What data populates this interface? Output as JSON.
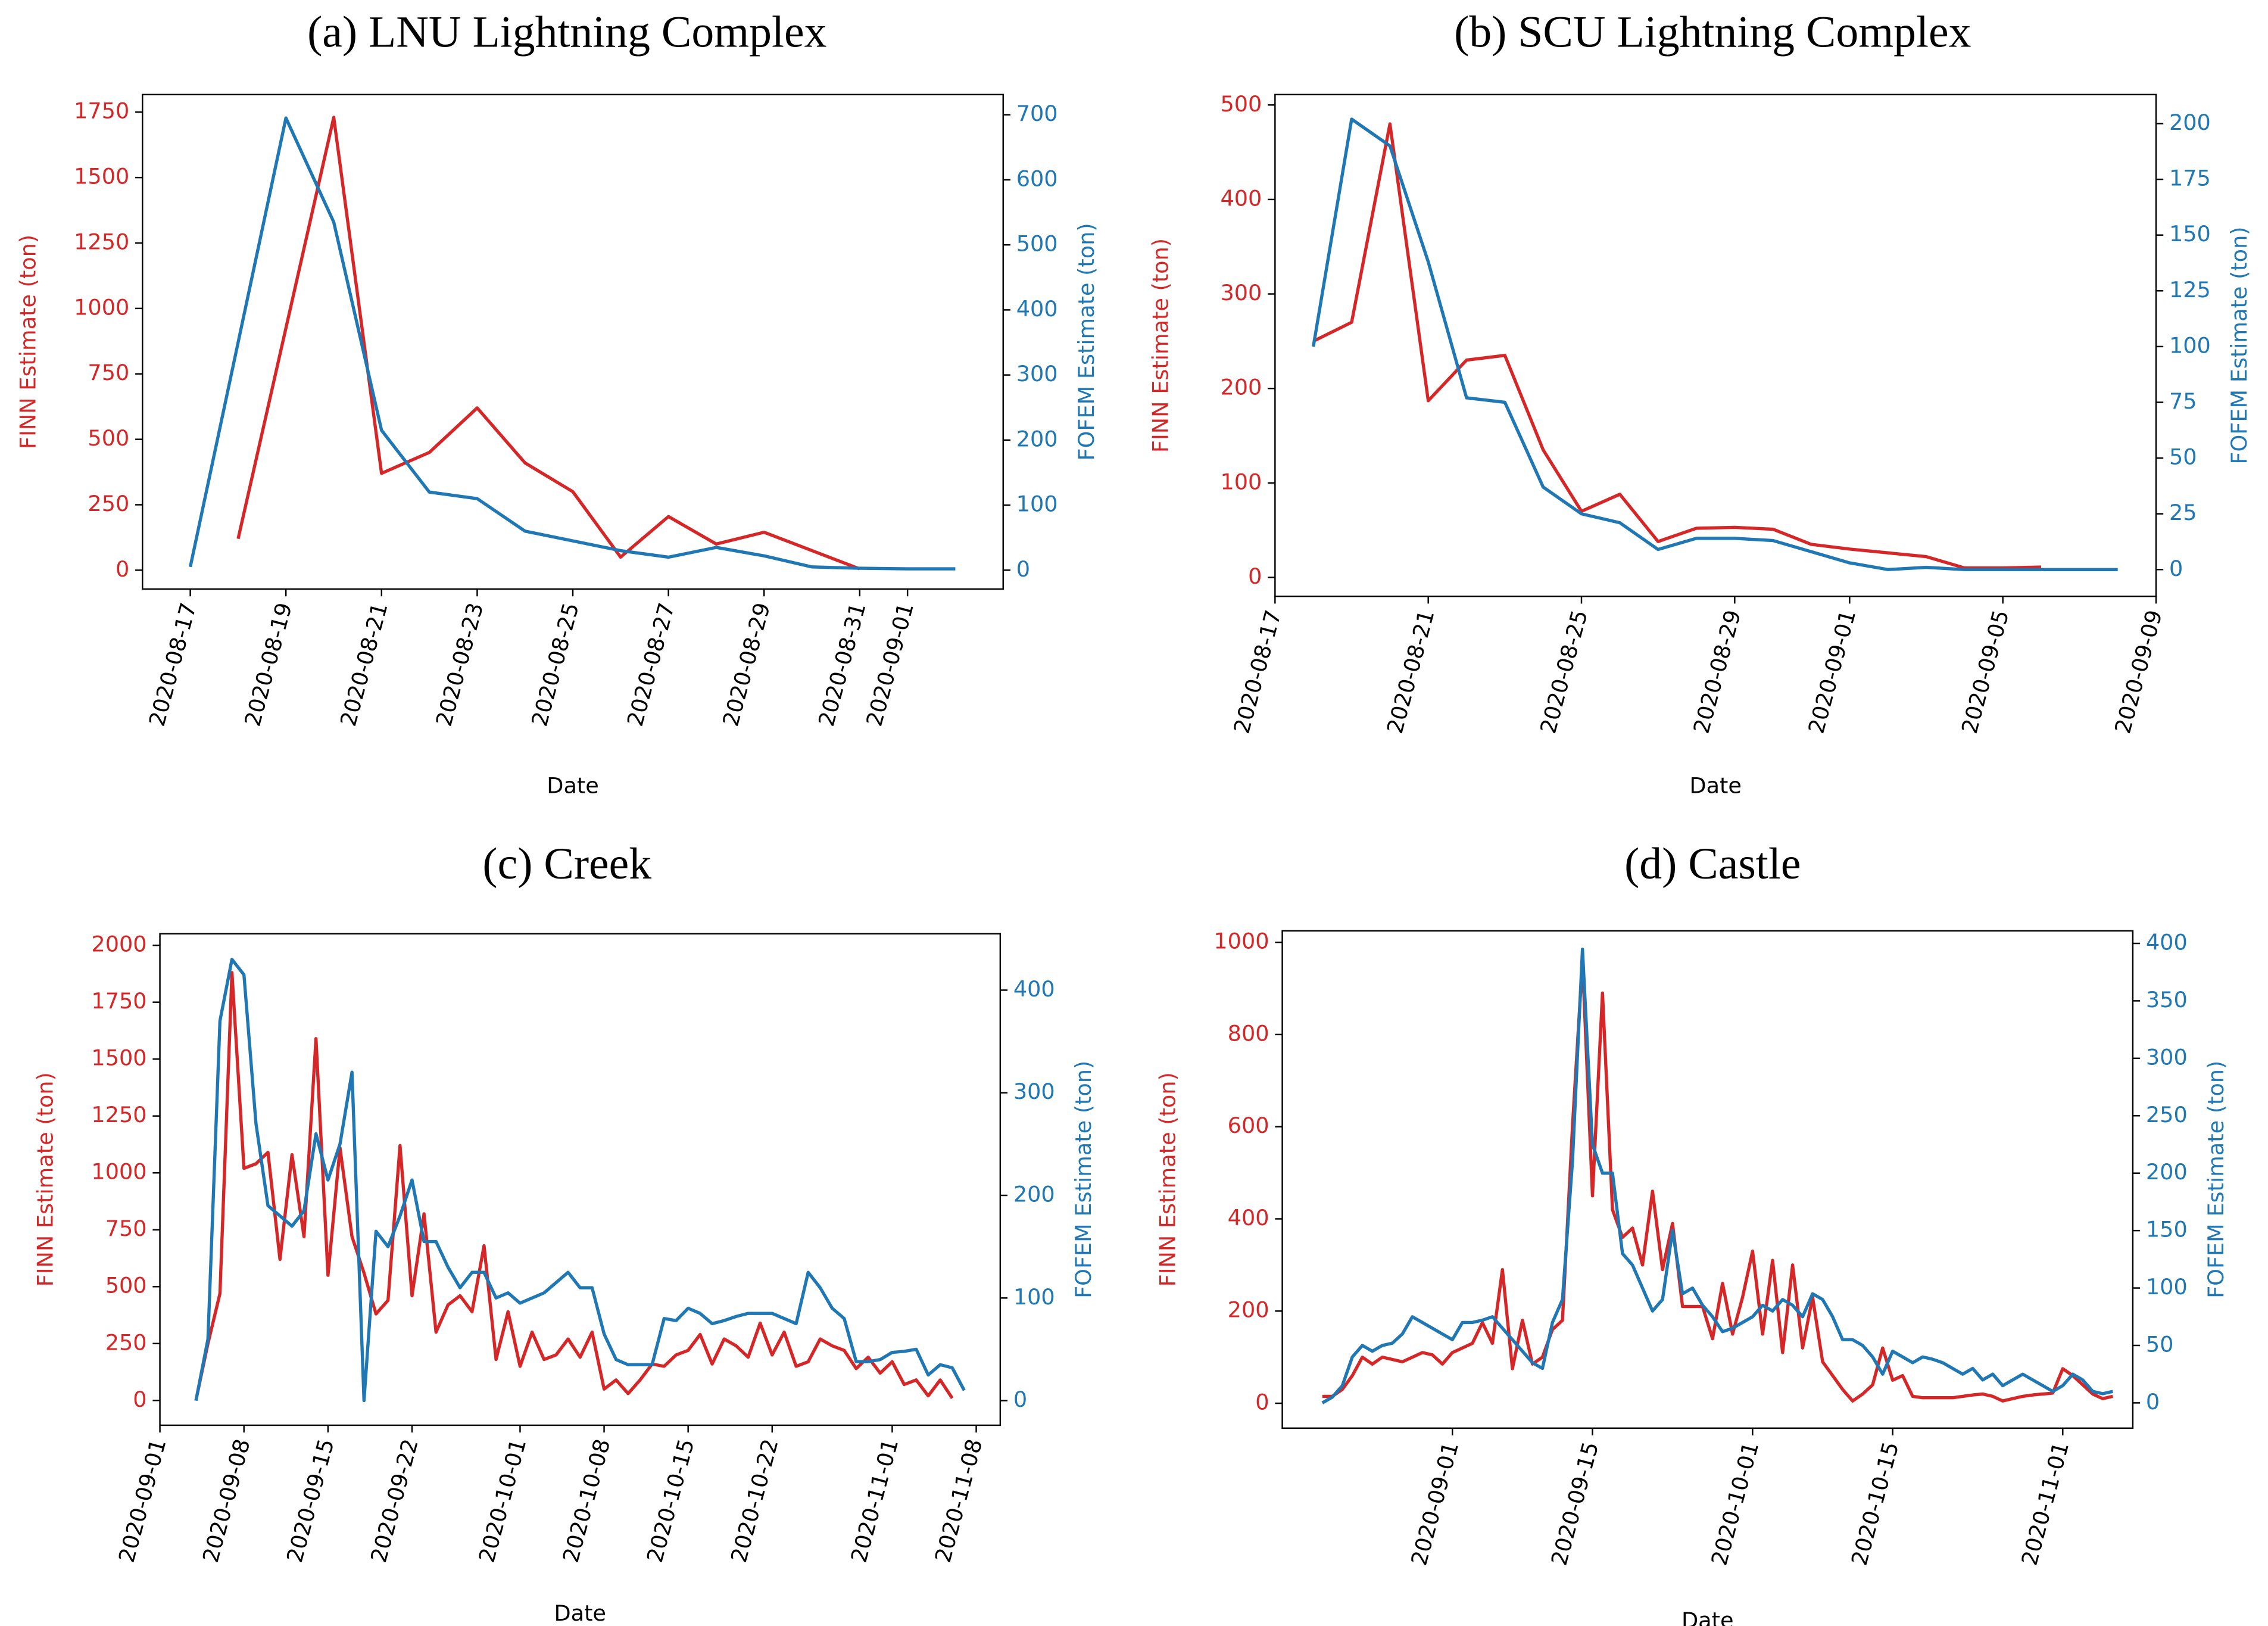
{
  "chart_data": [
    {
      "type": "line",
      "title": "(a) LNU Lightning Complex",
      "xlabel": "Date",
      "ylabel": "FINN Estimate (ton)",
      "y2label": "FOFEM Estimate (ton)",
      "x": [
        "2020-08-17",
        "2020-08-18",
        "2020-08-19",
        "2020-08-20",
        "2020-08-21",
        "2020-08-22",
        "2020-08-23",
        "2020-08-24",
        "2020-08-25",
        "2020-08-26",
        "2020-08-27",
        "2020-08-28",
        "2020-08-29",
        "2020-08-30",
        "2020-08-31",
        "2020-09-01",
        "2020-09-02"
      ],
      "series": [
        {
          "color": "#d62728",
          "axis": "y",
          "values": [
            null,
            120,
            925,
            1730,
            370,
            450,
            620,
            410,
            300,
            50,
            205,
            100,
            145,
            75,
            5,
            null,
            null
          ]
        },
        {
          "color": "#1f77b4",
          "axis": "y2",
          "values": [
            5,
            350,
            695,
            535,
            215,
            120,
            110,
            60,
            45,
            30,
            20,
            35,
            22,
            5,
            3,
            2,
            2
          ]
        }
      ],
      "xlim": [
        "2020-08-16",
        "2020-09-03"
      ],
      "xticks": [
        "2020-08-17",
        "2020-08-19",
        "2020-08-21",
        "2020-08-23",
        "2020-08-25",
        "2020-08-27",
        "2020-08-29",
        "2020-08-31",
        "2020-09-01"
      ],
      "ylim": [
        -72,
        1817
      ],
      "yticks": [
        0,
        250,
        500,
        750,
        1000,
        1250,
        1500,
        1750
      ],
      "y2lim": [
        -29,
        731
      ],
      "y2ticks": [
        0,
        100,
        200,
        300,
        400,
        500,
        600,
        700
      ]
    },
    {
      "type": "line",
      "title": "(b) SCU Lightning Complex",
      "xlabel": "Date",
      "ylabel": "FINN Estimate (ton)",
      "y2label": "FOFEM Estimate (ton)",
      "x": [
        "2020-08-18",
        "2020-08-19",
        "2020-08-20",
        "2020-08-21",
        "2020-08-22",
        "2020-08-23",
        "2020-08-24",
        "2020-08-25",
        "2020-08-26",
        "2020-08-27",
        "2020-08-28",
        "2020-08-29",
        "2020-08-30",
        "2020-08-31",
        "2020-09-01",
        "2020-09-02",
        "2020-09-03",
        "2020-09-04",
        "2020-09-05",
        "2020-09-06",
        "2020-09-07",
        "2020-09-08"
      ],
      "series": [
        {
          "color": "#d62728",
          "axis": "y",
          "values": [
            250,
            270,
            480,
            187,
            230,
            235,
            135,
            70,
            88,
            38,
            52,
            53,
            51,
            35,
            30,
            26,
            22,
            10,
            10,
            11,
            null,
            null
          ]
        },
        {
          "color": "#1f77b4",
          "axis": "y2",
          "values": [
            100,
            202,
            190,
            138,
            77,
            75,
            37,
            25,
            21,
            9,
            14,
            14,
            13,
            8,
            3,
            0,
            1,
            0,
            0,
            0,
            0,
            0
          ]
        }
      ],
      "xlim": [
        "2020-08-17",
        "2020-09-09"
      ],
      "xticks": [
        "2020-08-17",
        "2020-08-21",
        "2020-08-25",
        "2020-08-29",
        "2020-09-01",
        "2020-09-05",
        "2020-09-09"
      ],
      "ylim": [
        -20,
        511
      ],
      "yticks": [
        0,
        100,
        200,
        300,
        400,
        500
      ],
      "y2lim": [
        -12,
        213
      ],
      "y2ticks": [
        0,
        25,
        50,
        75,
        100,
        125,
        150,
        175,
        200
      ]
    },
    {
      "type": "line",
      "title": "(c) Creek",
      "xlabel": "Date",
      "ylabel": "FINN Estimate (ton)",
      "y2label": "FOFEM Estimate (ton)",
      "x": [
        "2020-09-04",
        "2020-09-05",
        "2020-09-06",
        "2020-09-07",
        "2020-09-08",
        "2020-09-09",
        "2020-09-10",
        "2020-09-11",
        "2020-09-12",
        "2020-09-13",
        "2020-09-14",
        "2020-09-15",
        "2020-09-16",
        "2020-09-17",
        "2020-09-18",
        "2020-09-19",
        "2020-09-20",
        "2020-09-21",
        "2020-09-22",
        "2020-09-23",
        "2020-09-24",
        "2020-09-25",
        "2020-09-26",
        "2020-09-27",
        "2020-09-28",
        "2020-09-29",
        "2020-09-30",
        "2020-10-01",
        "2020-10-02",
        "2020-10-03",
        "2020-10-04",
        "2020-10-05",
        "2020-10-06",
        "2020-10-07",
        "2020-10-08",
        "2020-10-09",
        "2020-10-10",
        "2020-10-11",
        "2020-10-12",
        "2020-10-13",
        "2020-10-14",
        "2020-10-15",
        "2020-10-16",
        "2020-10-17",
        "2020-10-18",
        "2020-10-19",
        "2020-10-20",
        "2020-10-21",
        "2020-10-22",
        "2020-10-23",
        "2020-10-24",
        "2020-10-25",
        "2020-10-26",
        "2020-10-27",
        "2020-10-28",
        "2020-10-29",
        "2020-10-30",
        "2020-10-31",
        "2020-11-01",
        "2020-11-02",
        "2020-11-03",
        "2020-11-04",
        "2020-11-05",
        "2020-11-06",
        "2020-11-07"
      ],
      "series": [
        {
          "color": "#d62728",
          "axis": "y",
          "values": [
            0,
            250,
            470,
            1880,
            1020,
            1040,
            1090,
            620,
            1080,
            720,
            1590,
            550,
            1110,
            720,
            560,
            380,
            440,
            1120,
            460,
            820,
            300,
            420,
            460,
            390,
            680,
            180,
            390,
            150,
            300,
            180,
            200,
            270,
            190,
            300,
            50,
            90,
            30,
            90,
            160,
            150,
            200,
            220,
            290,
            160,
            270,
            240,
            190,
            340,
            200,
            300,
            150,
            170,
            270,
            240,
            220,
            140,
            190,
            120,
            170,
            70,
            90,
            20,
            90,
            10,
            null
          ]
        },
        {
          "color": "#1f77b4",
          "axis": "y2",
          "values": [
            0,
            60,
            370,
            430,
            415,
            270,
            190,
            180,
            170,
            185,
            260,
            215,
            250,
            320,
            0,
            165,
            150,
            180,
            215,
            155,
            155,
            130,
            110,
            125,
            125,
            100,
            105,
            95,
            100,
            105,
            115,
            125,
            110,
            110,
            65,
            40,
            35,
            35,
            35,
            80,
            78,
            90,
            85,
            75,
            78,
            82,
            85,
            85,
            85,
            80,
            75,
            125,
            110,
            90,
            80,
            38,
            38,
            40,
            47,
            48,
            50,
            25,
            35,
            32,
            10
          ]
        }
      ],
      "xlim": [
        "2020-09-01",
        "2020-11-10"
      ],
      "xticks": [
        "2020-09-01",
        "2020-09-08",
        "2020-09-15",
        "2020-09-22",
        "2020-10-01",
        "2020-10-08",
        "2020-10-15",
        "2020-10-22",
        "2020-11-01",
        "2020-11-08"
      ],
      "ylim": [
        -109,
        2051
      ],
      "yticks": [
        0,
        250,
        500,
        750,
        1000,
        1250,
        1500,
        1750,
        2000
      ],
      "y2lim": [
        -24,
        455
      ],
      "y2ticks": [
        0,
        100,
        200,
        300,
        400
      ]
    },
    {
      "type": "line",
      "title": "(d) Castle",
      "xlabel": "Date",
      "ylabel": "FINN Estimate (ton)",
      "y2label": "FOFEM Estimate (ton)",
      "x": [
        "2020-08-19",
        "2020-08-20",
        "2020-08-21",
        "2020-08-22",
        "2020-08-23",
        "2020-08-24",
        "2020-08-25",
        "2020-08-26",
        "2020-08-27",
        "2020-08-28",
        "2020-08-29",
        "2020-08-30",
        "2020-08-31",
        "2020-09-01",
        "2020-09-02",
        "2020-09-03",
        "2020-09-04",
        "2020-09-05",
        "2020-09-06",
        "2020-09-07",
        "2020-09-08",
        "2020-09-09",
        "2020-09-10",
        "2020-09-11",
        "2020-09-12",
        "2020-09-13",
        "2020-09-14",
        "2020-09-15",
        "2020-09-16",
        "2020-09-17",
        "2020-09-18",
        "2020-09-19",
        "2020-09-20",
        "2020-09-21",
        "2020-09-22",
        "2020-09-23",
        "2020-09-24",
        "2020-09-25",
        "2020-09-26",
        "2020-09-27",
        "2020-09-28",
        "2020-09-29",
        "2020-09-30",
        "2020-10-01",
        "2020-10-02",
        "2020-10-03",
        "2020-10-04",
        "2020-10-05",
        "2020-10-06",
        "2020-10-07",
        "2020-10-08",
        "2020-10-09",
        "2020-10-10",
        "2020-10-11",
        "2020-10-12",
        "2020-10-13",
        "2020-10-14",
        "2020-10-15",
        "2020-10-16",
        "2020-10-17",
        "2020-10-18",
        "2020-10-19",
        "2020-10-20",
        "2020-10-21",
        "2020-10-22",
        "2020-10-23",
        "2020-10-24",
        "2020-10-25",
        "2020-10-26",
        "2020-10-27",
        "2020-10-28",
        "2020-10-29",
        "2020-10-30",
        "2020-10-31",
        "2020-11-01",
        "2020-11-02",
        "2020-11-03",
        "2020-11-04",
        "2020-11-05",
        "2020-11-06"
      ],
      "series": [
        {
          "color": "#d62728",
          "axis": "y",
          "values": [
            15,
            15,
            30,
            60,
            100,
            85,
            100,
            95,
            90,
            100,
            110,
            105,
            85,
            110,
            120,
            130,
            175,
            130,
            290,
            75,
            180,
            85,
            100,
            160,
            180,
            600,
            960,
            450,
            890,
            420,
            360,
            380,
            300,
            460,
            290,
            390,
            210,
            210,
            210,
            140,
            260,
            150,
            230,
            330,
            150,
            310,
            110,
            300,
            120,
            230,
            90,
            60,
            30,
            5,
            20,
            40,
            120,
            50,
            60,
            15,
            12,
            12,
            12,
            12,
            15,
            18,
            20,
            15,
            5,
            10,
            15,
            18,
            20,
            22,
            75,
            60,
            40,
            20,
            10,
            15
          ]
        },
        {
          "color": "#1f77b4",
          "axis": "y2",
          "values": [
            0,
            5,
            15,
            40,
            50,
            45,
            50,
            52,
            60,
            75,
            70,
            65,
            60,
            55,
            70,
            70,
            72,
            75,
            65,
            55,
            45,
            35,
            30,
            70,
            90,
            210,
            395,
            225,
            200,
            200,
            130,
            120,
            100,
            80,
            90,
            150,
            95,
            100,
            85,
            75,
            62,
            65,
            70,
            75,
            85,
            80,
            90,
            85,
            75,
            95,
            90,
            75,
            55,
            55,
            50,
            40,
            25,
            45,
            40,
            35,
            40,
            38,
            35,
            30,
            25,
            30,
            20,
            25,
            15,
            20,
            25,
            20,
            15,
            10,
            15,
            25,
            20,
            10,
            8,
            10
          ]
        }
      ],
      "xlim": [
        "2020-08-15",
        "2020-11-08"
      ],
      "xticks": [
        "2020-09-01",
        "2020-09-15",
        "2020-10-01",
        "2020-10-15",
        "2020-11-01"
      ],
      "ylim": [
        -54,
        1025
      ],
      "yticks": [
        0,
        200,
        400,
        600,
        800,
        1000
      ],
      "y2lim": [
        -22,
        411
      ],
      "y2ticks": [
        0,
        50,
        100,
        150,
        200,
        250,
        300,
        350,
        400
      ]
    }
  ]
}
